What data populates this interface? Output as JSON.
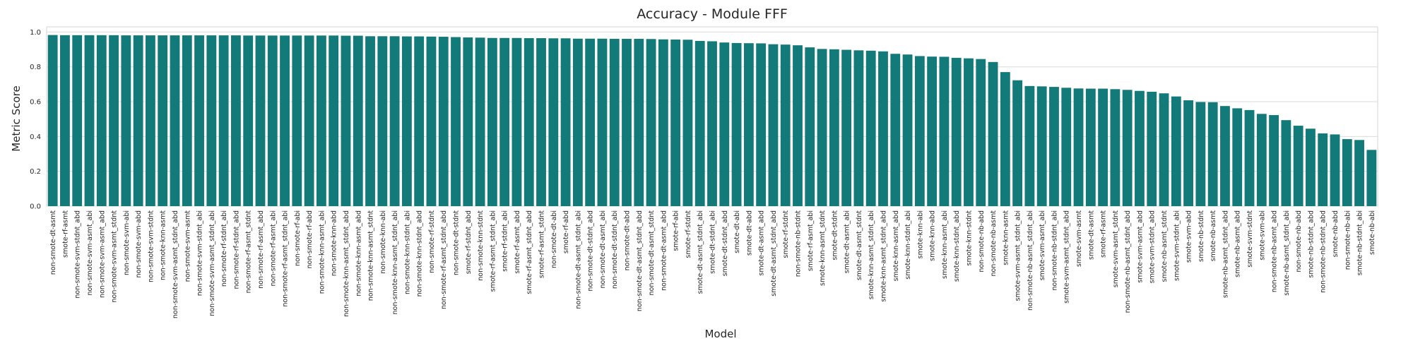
{
  "chart_data": {
    "type": "bar",
    "title": "Accuracy - Module FFF",
    "x_label": "Model",
    "y_label": "Metric Score",
    "color": "#137a7a",
    "grid": true,
    "categories": [
      "non-smote-dt-asmt",
      "smote-rf-asmt",
      "non-smote-svm-stdnt_abd",
      "non-smote-svm-asmt_abi",
      "non-smote-svm-asmt_abd",
      "non-smote-svm-asmt_stdnt",
      "non-smote-svm-abi",
      "non-smote-svm-abd",
      "non-smote-svm-stdnt",
      "non-smote-knn-asmt",
      "non-smote-svm-asmt_stdnt_abd",
      "non-smote-svm-asmt",
      "non-smote-svm-stdnt_abi",
      "non-smote-svm-asmt_stdnt_abi",
      "non-smote-rf-stdnt_abi",
      "non-smote-rf-stdnt_abd",
      "non-smote-rf-asmt_stdnt",
      "non-smote-rf-asmt_abd",
      "non-smote-rf-asmt_abi",
      "non-smote-rf-asmt_stdnt_abi",
      "non-smote-rf-abi",
      "non-smote-rf-abd",
      "non-smote-knn-asmt_abi",
      "non-smote-knn-abd",
      "non-smote-knn-asmt_stdnt_abd",
      "non-smote-knn-asmt_abd",
      "non-smote-knn-asmt_stdnt",
      "non-smote-knn-abi",
      "non-smote-knn-asmt_stdnt_abi",
      "non-smote-knn-stdnt_abi",
      "non-smote-knn-stdnt_abd",
      "non-smote-rf-stdnt",
      "non-smote-rf-asmt_stdnt_abd",
      "non-smote-dt-stdnt",
      "smote-rf-stdnt_abd",
      "non-smote-knn-stdnt",
      "smote-rf-asmt_stdnt_abi",
      "smote-rf-stdnt_abi",
      "smote-rf-asmt_abd",
      "smote-rf-asmt_stdnt_abd",
      "smote-rf-asmt_stdnt",
      "non-smote-dt-abi",
      "smote-rf-abd",
      "non-smote-dt-asmt_stdnt_abi",
      "non-smote-dt-stdnt_abd",
      "non-smote-dt-asmt_abi",
      "non-smote-dt-stdnt_abi",
      "non-smote-dt-abd",
      "non-smote-dt-asmt_stdnt_abd",
      "non-smote-dt-asmt_stdnt",
      "non-smote-dt-asmt_abd",
      "smote-rf-abi",
      "smote-rf-stdnt",
      "smote-dt-asmt_stdnt_abi",
      "smote-dt-stdnt_abi",
      "smote-dt-stdnt_abd",
      "smote-dt-abi",
      "smote-dt-abd",
      "smote-dt-asmt_abd",
      "smote-dt-asmt_stdnt_abd",
      "smote-rf-stdnt",
      "non-smote-nb-stdnt",
      "smote-rf-asmt_abi",
      "smote-knn-asmt_stdnt",
      "smote-dt-stdnt",
      "smote-dt-asmt_abi",
      "smote-dt-asmt_stdnt",
      "smote-knn-asmt_stdnt_abi",
      "smote-knn-asmt_stdnt_abd",
      "smote-knn-asmt_abd",
      "smote-knn-stdnt_abi",
      "smote-knn-abi",
      "smote-knn-abd",
      "smote-knn-asmt_abi",
      "smote-knn-stdnt_abd",
      "smote-knn-stdnt",
      "non-smote-nb-abd",
      "non-smote-nb-asmt",
      "smote-knn-asmt",
      "smote-svm-asmt_stdnt_abi",
      "non-smote-nb-asmt_stdnt_abi",
      "smote-svm-asmt_abi",
      "non-smote-nb-stdnt_abi",
      "smote-svm-asmt_stdnt_abd",
      "smote-svm-asmt",
      "smote-dt-asmt",
      "smote-rf-asmt",
      "smote-svm-asmt_stdnt",
      "non-smote-nb-asmt_stdnt_abd",
      "smote-svm-asmt_abd",
      "smote-svm-stdnt_abd",
      "smote-nb-asmt_stdnt",
      "smote-svm-stdnt_abi",
      "smote-svm-abd",
      "smote-nb-stdnt",
      "smote-nb-asmt",
      "smote-nb-asmt_stdnt_abd",
      "smote-nb-asmt_abd",
      "smote-svm-stdnt",
      "smote-svm-abi",
      "non-smote-nb-asmt_abd",
      "smote-nb-asmt_stdnt_abi",
      "non-smote-nb-abd",
      "smote-nb-stdnt_abd",
      "non-smote-nb-stdnt_abd",
      "smote-nb-abd",
      "non-smote-nb-abi",
      "smote-nb-stdnt_abi",
      "smote-nb-abi"
    ],
    "values": [
      0.983,
      0.982,
      0.982,
      0.982,
      0.982,
      0.982,
      0.981,
      0.981,
      0.981,
      0.981,
      0.981,
      0.981,
      0.981,
      0.981,
      0.981,
      0.981,
      0.98,
      0.98,
      0.98,
      0.98,
      0.98,
      0.98,
      0.98,
      0.98,
      0.979,
      0.979,
      0.976,
      0.976,
      0.976,
      0.975,
      0.975,
      0.974,
      0.973,
      0.971,
      0.969,
      0.968,
      0.966,
      0.966,
      0.966,
      0.965,
      0.965,
      0.964,
      0.964,
      0.962,
      0.962,
      0.962,
      0.961,
      0.961,
      0.961,
      0.96,
      0.958,
      0.957,
      0.956,
      0.949,
      0.947,
      0.94,
      0.937,
      0.936,
      0.935,
      0.93,
      0.928,
      0.924,
      0.912,
      0.903,
      0.901,
      0.898,
      0.895,
      0.893,
      0.889,
      0.875,
      0.871,
      0.862,
      0.859,
      0.858,
      0.852,
      0.849,
      0.845,
      0.828,
      0.77,
      0.723,
      0.69,
      0.688,
      0.685,
      0.68,
      0.676,
      0.675,
      0.675,
      0.672,
      0.668,
      0.662,
      0.657,
      0.648,
      0.63,
      0.608,
      0.598,
      0.597,
      0.575,
      0.562,
      0.552,
      0.53,
      0.523,
      0.494,
      0.462,
      0.445,
      0.418,
      0.412,
      0.385,
      0.38,
      0.323
    ],
    "ylim": [
      0,
      1.03
    ],
    "yticks": [
      {
        "value": 0,
        "label": "0.0"
      },
      0.2,
      0.4,
      0.6,
      0.8,
      {
        "value": 1,
        "label": "1.0"
      }
    ]
  }
}
